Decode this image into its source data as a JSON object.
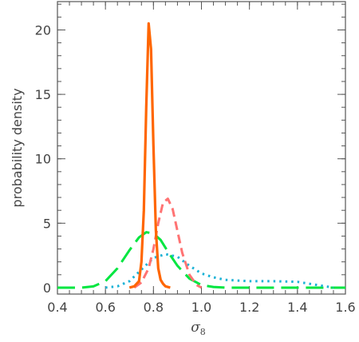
{
  "chart_data": {
    "type": "line",
    "title": "",
    "xlabel": "σ",
    "xlabel_subscript": "8",
    "ylabel": "probability density",
    "xlim": [
      0.4,
      1.6
    ],
    "ylim": [
      -0.5,
      22.2
    ],
    "xticks": [
      "0.4",
      "0.6",
      "0.8",
      "1.0",
      "1.2",
      "1.4",
      "1.6"
    ],
    "yticks": [
      "0",
      "5",
      "10",
      "15",
      "20"
    ],
    "grid": false,
    "legend": "none",
    "series": [
      {
        "color": "#00e640",
        "style": "long-dash",
        "x": [
          0.4,
          0.5,
          0.55,
          0.6,
          0.65,
          0.7,
          0.74,
          0.77,
          0.8,
          0.83,
          0.86,
          0.9,
          0.95,
          1.0,
          1.05,
          1.1,
          1.2,
          1.3,
          1.4,
          1.5,
          1.6
        ],
        "y": [
          0,
          0,
          0.1,
          0.5,
          1.5,
          2.9,
          3.9,
          4.3,
          4.2,
          3.7,
          2.8,
          1.7,
          0.7,
          0.2,
          0.05,
          0,
          0,
          0,
          0,
          0,
          0
        ]
      },
      {
        "color": "#1ab2d6",
        "style": "dotted",
        "x": [
          0.6,
          0.65,
          0.7,
          0.75,
          0.8,
          0.85,
          0.9,
          0.95,
          1.0,
          1.05,
          1.1,
          1.15,
          1.2,
          1.3,
          1.4,
          1.45,
          1.5,
          1.55
        ],
        "y": [
          0,
          0.1,
          0.5,
          1.4,
          2.3,
          2.6,
          2.4,
          1.7,
          1.1,
          0.8,
          0.6,
          0.55,
          0.5,
          0.5,
          0.45,
          0.3,
          0.15,
          0
        ]
      },
      {
        "color": "#ff7373",
        "style": "dashed",
        "x": [
          0.72,
          0.75,
          0.78,
          0.8,
          0.82,
          0.84,
          0.86,
          0.88,
          0.9,
          0.92,
          0.95,
          0.98,
          1.0
        ],
        "y": [
          0,
          0.4,
          1.5,
          3.0,
          5.0,
          6.6,
          6.9,
          6.1,
          4.4,
          2.7,
          1.0,
          0.2,
          0
        ]
      },
      {
        "color": "#ff6600",
        "style": "solid",
        "x": [
          0.7,
          0.72,
          0.74,
          0.75,
          0.76,
          0.77,
          0.78,
          0.79,
          0.8,
          0.81,
          0.82,
          0.83,
          0.84,
          0.85,
          0.87
        ],
        "y": [
          0,
          0.1,
          0.5,
          2.0,
          6.0,
          14.0,
          20.5,
          18.5,
          11.0,
          4.5,
          1.5,
          0.6,
          0.3,
          0.1,
          0
        ]
      }
    ]
  }
}
